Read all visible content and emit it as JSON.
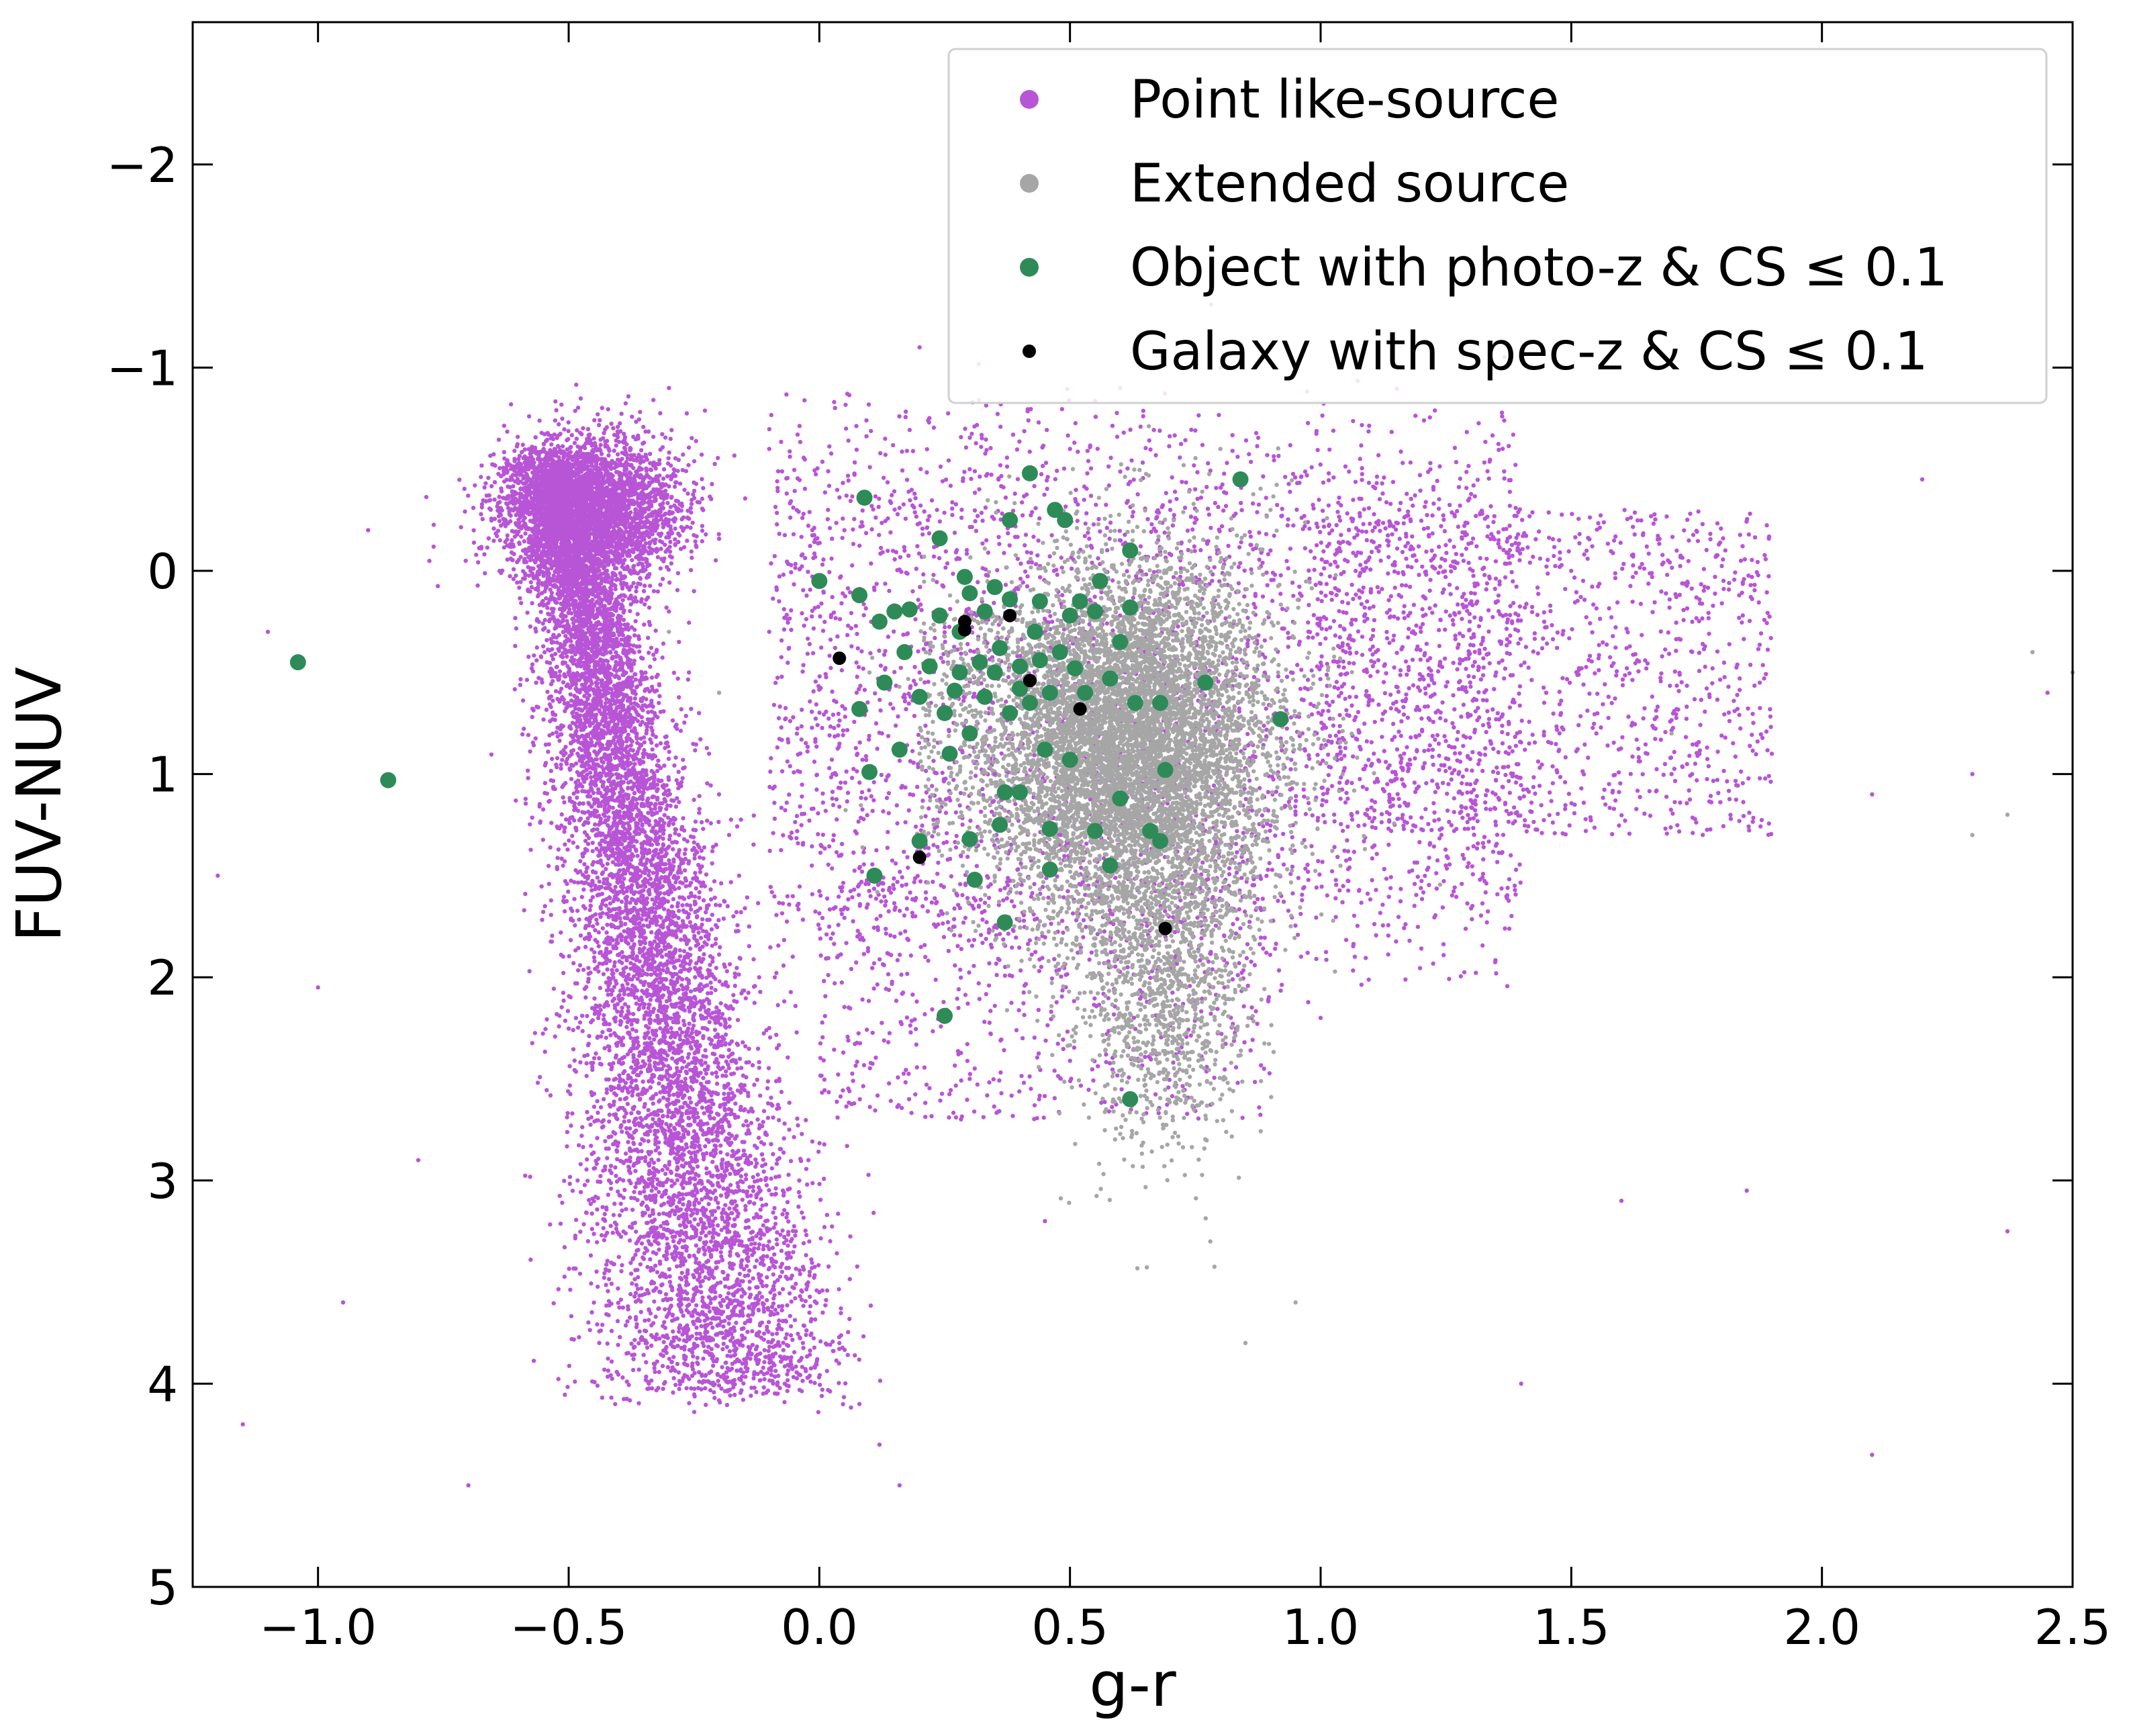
{
  "chart_data": {
    "type": "scatter",
    "title": "",
    "xlabel": "g-r",
    "ylabel": "FUV-NUV",
    "xlim": [
      -1.25,
      2.5
    ],
    "ylim": [
      5,
      -2.7
    ],
    "y_inverted": true,
    "xticks": [
      {
        "value": -1.0,
        "label": "−1.0"
      },
      {
        "value": -0.5,
        "label": "−0.5"
      },
      {
        "value": 0.0,
        "label": "0.0"
      },
      {
        "value": 0.5,
        "label": "0.5"
      },
      {
        "value": 1.0,
        "label": "1.0"
      },
      {
        "value": 1.5,
        "label": "1.5"
      },
      {
        "value": 2.0,
        "label": "2.0"
      },
      {
        "value": 2.5,
        "label": "2.5"
      }
    ],
    "yticks": [
      {
        "value": -2,
        "label": "−2"
      },
      {
        "value": -1,
        "label": "−1"
      },
      {
        "value": 0,
        "label": "0"
      },
      {
        "value": 1,
        "label": "1"
      },
      {
        "value": 2,
        "label": "2"
      },
      {
        "value": 3,
        "label": "3"
      },
      {
        "value": 4,
        "label": "4"
      },
      {
        "value": 5,
        "label": "5"
      }
    ],
    "grid": false,
    "legend_position": "top-right",
    "series": [
      {
        "name": "Point like-source",
        "color": "#b855d6",
        "marker": "small-dot",
        "representation": "dense cloud; main band plus diffuse spread and isolated outliers",
        "points": [
          [
            -0.6,
            -0.55
          ],
          [
            -0.58,
            -0.5
          ],
          [
            -0.55,
            -0.45
          ],
          [
            -0.52,
            -0.5
          ],
          [
            -0.5,
            -0.4
          ],
          [
            -0.48,
            -0.35
          ],
          [
            -0.45,
            -0.3
          ],
          [
            -0.42,
            -0.25
          ],
          [
            -0.4,
            -0.15
          ],
          [
            -0.38,
            -0.1
          ],
          [
            -0.35,
            0.0
          ],
          [
            -0.33,
            0.1
          ],
          [
            -0.3,
            0.2
          ],
          [
            -0.28,
            0.35
          ],
          [
            -0.26,
            0.5
          ],
          [
            -0.24,
            0.7
          ],
          [
            -0.22,
            0.9
          ],
          [
            -0.2,
            1.1
          ],
          [
            -0.18,
            1.3
          ],
          [
            -0.16,
            1.5
          ],
          [
            -0.14,
            1.75
          ],
          [
            -0.12,
            2.0
          ],
          [
            -0.1,
            2.25
          ],
          [
            -0.08,
            2.5
          ],
          [
            -0.06,
            2.75
          ],
          [
            -0.04,
            3.0
          ],
          [
            -0.02,
            3.3
          ],
          [
            0.0,
            3.55
          ],
          [
            0.04,
            3.8
          ],
          [
            0.08,
            4.1
          ],
          [
            0.12,
            4.3
          ],
          [
            0.16,
            4.5
          ],
          [
            -0.9,
            -0.2
          ],
          [
            -1.1,
            0.3
          ],
          [
            -1.2,
            1.5
          ],
          [
            -1.15,
            4.2
          ],
          [
            -0.7,
            4.5
          ],
          [
            -0.8,
            2.9
          ],
          [
            -0.95,
            3.6
          ],
          [
            -1.0,
            2.05
          ],
          [
            0.3,
            -0.5
          ],
          [
            0.5,
            -0.6
          ],
          [
            0.7,
            -0.3
          ],
          [
            0.9,
            -0.1
          ],
          [
            1.1,
            0.1
          ],
          [
            1.2,
            0.3
          ],
          [
            1.35,
            0.5
          ],
          [
            1.45,
            0.6
          ],
          [
            1.55,
            0.8
          ],
          [
            1.7,
            1.0
          ],
          [
            1.9,
            0.9
          ],
          [
            2.1,
            1.1
          ],
          [
            2.3,
            1.0
          ],
          [
            2.45,
            0.6
          ],
          [
            2.2,
            -0.45
          ],
          [
            1.4,
            4.0
          ],
          [
            1.6,
            3.1
          ],
          [
            1.85,
            3.05
          ],
          [
            2.1,
            4.35
          ],
          [
            2.37,
            3.25
          ],
          [
            1.25,
            0.2
          ],
          [
            1.05,
            0.4
          ],
          [
            0.95,
            1.2
          ],
          [
            1.0,
            2.2
          ],
          [
            0.15,
            1.8
          ],
          [
            0.3,
            2.5
          ],
          [
            0.45,
            3.2
          ],
          [
            0.6,
            -0.9
          ],
          [
            0.8,
            -1.0
          ],
          [
            0.2,
            -1.1
          ],
          [
            -0.3,
            -0.9
          ],
          [
            -0.1,
            -0.6
          ],
          [
            0.05,
            -0.2
          ],
          [
            0.2,
            0.5
          ],
          [
            0.35,
            1.0
          ],
          [
            -0.6,
            -0.3
          ],
          [
            -0.55,
            -0.6
          ],
          [
            -0.45,
            -0.1
          ],
          [
            -0.25,
            0.1
          ],
          [
            -0.1,
            0.3
          ]
        ]
      },
      {
        "name": "Extended source",
        "color": "#a6a6a6",
        "marker": "small-dot",
        "representation": "dense cloud centred near g-r 0.6, FUV-NUV 0.9",
        "points": [
          [
            0.4,
            0.2
          ],
          [
            0.5,
            0.3
          ],
          [
            0.6,
            0.4
          ],
          [
            0.7,
            0.5
          ],
          [
            0.75,
            0.7
          ],
          [
            0.8,
            0.9
          ],
          [
            0.65,
            1.0
          ],
          [
            0.55,
            1.1
          ],
          [
            0.45,
            1.2
          ],
          [
            0.5,
            0.8
          ],
          [
            0.6,
            0.7
          ],
          [
            0.7,
            1.2
          ],
          [
            0.75,
            1.5
          ],
          [
            0.65,
            1.6
          ],
          [
            0.6,
            1.4
          ],
          [
            0.55,
            1.3
          ],
          [
            0.7,
            1.9
          ],
          [
            0.75,
            2.2
          ],
          [
            0.8,
            2.6
          ],
          [
            0.78,
            3.3
          ],
          [
            0.85,
            3.8
          ],
          [
            0.9,
            -0.3
          ],
          [
            0.8,
            -0.6
          ],
          [
            0.3,
            0.6
          ],
          [
            0.2,
            0.9
          ],
          [
            0.1,
            0.5
          ],
          [
            0.35,
            1.5
          ],
          [
            0.85,
            0.2
          ],
          [
            0.9,
            0.8
          ],
          [
            0.65,
            2.1
          ],
          [
            2.3,
            1.3
          ],
          [
            2.37,
            1.2
          ],
          [
            2.42,
            0.4
          ],
          [
            2.5,
            0.5
          ],
          [
            -0.3,
            0.3
          ],
          [
            -0.2,
            0.6
          ],
          [
            1.7,
            0.8
          ],
          [
            0.95,
            3.6
          ]
        ]
      },
      {
        "name": "Object with photo-z & CS $\\leq$ 0.1",
        "color": "#2e8b57",
        "marker": "large-dot",
        "points": [
          [
            -1.04,
            0.45
          ],
          [
            -0.86,
            1.03
          ],
          [
            0.09,
            -0.36
          ],
          [
            0.0,
            0.05
          ],
          [
            0.08,
            0.12
          ],
          [
            0.12,
            0.25
          ],
          [
            0.13,
            0.55
          ],
          [
            0.08,
            0.68
          ],
          [
            0.1,
            0.99
          ],
          [
            0.11,
            1.5
          ],
          [
            0.2,
            1.33
          ],
          [
            0.25,
            2.19
          ],
          [
            0.24,
            -0.16
          ],
          [
            0.28,
            0.3
          ],
          [
            0.32,
            0.45
          ],
          [
            0.35,
            0.5
          ],
          [
            0.38,
            0.7
          ],
          [
            0.42,
            -0.48
          ],
          [
            0.38,
            -0.25
          ],
          [
            0.47,
            -0.3
          ],
          [
            0.49,
            -0.25
          ],
          [
            0.62,
            -0.1
          ],
          [
            0.84,
            -0.45
          ],
          [
            0.92,
            0.73
          ],
          [
            0.77,
            0.55
          ],
          [
            0.69,
            0.98
          ],
          [
            0.66,
            1.28
          ],
          [
            0.68,
            1.33
          ],
          [
            0.62,
            2.6
          ],
          [
            0.58,
            1.45
          ],
          [
            0.55,
            1.28
          ],
          [
            0.6,
            1.12
          ],
          [
            0.46,
            1.27
          ],
          [
            0.46,
            1.47
          ],
          [
            0.37,
            1.73
          ],
          [
            0.31,
            1.52
          ],
          [
            0.3,
            1.32
          ],
          [
            0.36,
            1.25
          ],
          [
            0.37,
            1.09
          ],
          [
            0.4,
            1.09
          ],
          [
            0.5,
            0.93
          ],
          [
            0.45,
            0.88
          ],
          [
            0.3,
            0.8
          ],
          [
            0.25,
            0.7
          ],
          [
            0.2,
            0.62
          ],
          [
            0.17,
            0.4
          ],
          [
            0.15,
            0.2
          ],
          [
            0.22,
            0.47
          ],
          [
            0.27,
            0.59
          ],
          [
            0.33,
            0.2
          ],
          [
            0.43,
            0.3
          ],
          [
            0.48,
            0.4
          ],
          [
            0.52,
            0.15
          ],
          [
            0.55,
            0.2
          ],
          [
            0.6,
            0.35
          ],
          [
            0.58,
            0.53
          ],
          [
            0.63,
            0.65
          ],
          [
            0.68,
            0.65
          ],
          [
            0.53,
            0.6
          ],
          [
            0.4,
            0.58
          ],
          [
            0.26,
            0.9
          ],
          [
            0.29,
            0.03
          ],
          [
            0.35,
            0.08
          ],
          [
            0.44,
            0.15
          ],
          [
            0.5,
            0.22
          ],
          [
            0.36,
            0.38
          ],
          [
            0.4,
            0.47
          ],
          [
            0.46,
            0.6
          ],
          [
            0.3,
            0.11
          ],
          [
            0.18,
            0.19
          ],
          [
            0.24,
            0.22
          ],
          [
            0.42,
            0.65
          ],
          [
            0.28,
            0.5
          ],
          [
            0.33,
            0.62
          ],
          [
            0.16,
            0.88
          ],
          [
            0.56,
            0.05
          ],
          [
            0.62,
            0.18
          ],
          [
            0.44,
            0.44
          ],
          [
            0.51,
            0.48
          ],
          [
            0.38,
            0.14
          ]
        ]
      },
      {
        "name": "Galaxy with spec-z & CS $\\leq$ 0.1",
        "color": "#000000",
        "marker": "medium-dot",
        "points": [
          [
            0.04,
            0.43
          ],
          [
            0.29,
            0.25
          ],
          [
            0.29,
            0.29
          ],
          [
            0.38,
            0.22
          ],
          [
            0.42,
            0.54
          ],
          [
            0.52,
            0.68
          ],
          [
            0.2,
            1.41
          ],
          [
            0.69,
            1.76
          ]
        ]
      }
    ]
  }
}
